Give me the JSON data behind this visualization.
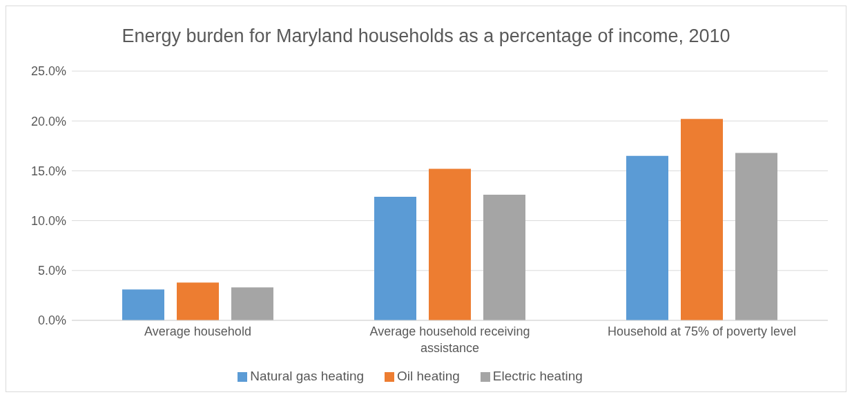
{
  "chart_data": {
    "type": "bar",
    "title": "Energy burden for Maryland households as a percentage of income, 2010",
    "categories": [
      "Average household",
      "Average household receiving assistance",
      "Household at 75% of poverty level"
    ],
    "series": [
      {
        "name": "Natural gas heating",
        "color": "#5b9bd5",
        "values": [
          3.1,
          12.4,
          16.5
        ]
      },
      {
        "name": "Oil heating",
        "color": "#ed7d31",
        "values": [
          3.8,
          15.2,
          20.2
        ]
      },
      {
        "name": "Electric heating",
        "color": "#a5a5a5",
        "values": [
          3.3,
          12.6,
          16.8
        ]
      }
    ],
    "ylim": [
      0,
      25
    ],
    "yticks": [
      {
        "value": 0,
        "label": "0.0%"
      },
      {
        "value": 5,
        "label": "5.0%"
      },
      {
        "value": 10,
        "label": "10.0%"
      },
      {
        "value": 15,
        "label": "15.0%"
      },
      {
        "value": 20,
        "label": "20.0%"
      },
      {
        "value": 25,
        "label": "25.0%"
      }
    ],
    "grid": "y",
    "legend": "bottom"
  }
}
